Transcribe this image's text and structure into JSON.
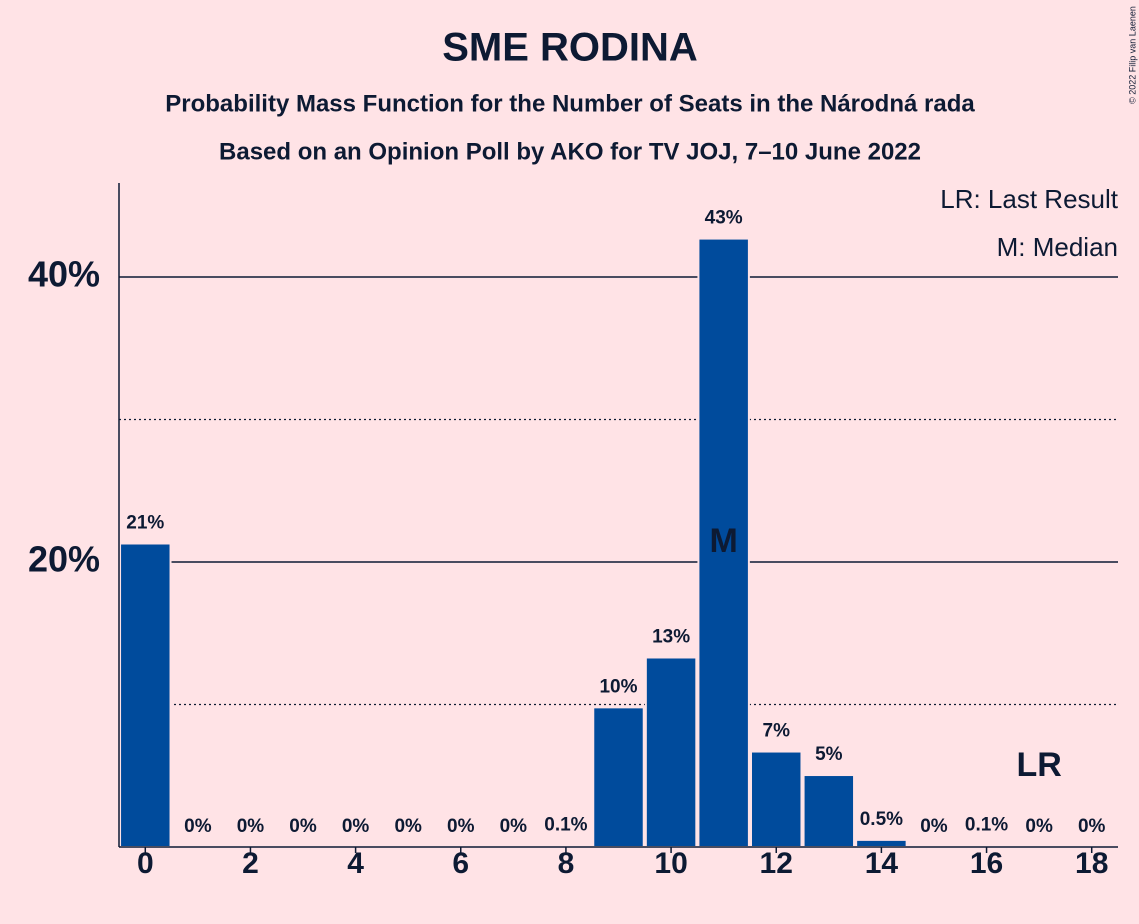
{
  "chart_data": {
    "type": "bar",
    "title": "SME RODINA",
    "subtitle": [
      "Probability Mass Function for the Number of Seats in the Národná rada",
      "Based on an Opinion Poll by AKO for TV JOJ, 7–10 June 2022"
    ],
    "legend": [
      "LR: Last Result",
      "M: Median"
    ],
    "copyright": "© 2022 Filip van Laenen",
    "x": [
      0,
      1,
      2,
      3,
      4,
      5,
      6,
      7,
      8,
      9,
      10,
      11,
      12,
      13,
      14,
      15,
      16,
      17,
      18
    ],
    "values": [
      21.3,
      0,
      0,
      0,
      0,
      0,
      0,
      0,
      0.1,
      9.8,
      13.3,
      42.7,
      6.7,
      5.05,
      0.5,
      0,
      0.1,
      0,
      0
    ],
    "value_labels": [
      "21%",
      "0%",
      "0%",
      "0%",
      "0%",
      "0%",
      "0%",
      "0%",
      "0.1%",
      "10%",
      "13%",
      "43%",
      "7%",
      "5%",
      "0.5%",
      "0%",
      "0.1%",
      "0%",
      "0%"
    ],
    "color": "#004b9c",
    "xlim": [
      -0.5,
      18.5
    ],
    "xticks": [
      0,
      2,
      4,
      6,
      8,
      10,
      12,
      14,
      16,
      18
    ],
    "ylim": [
      0,
      46.6
    ],
    "yticks": [
      {
        "value": 20,
        "label": "20%"
      },
      {
        "value": 40,
        "label": "40%"
      }
    ],
    "minor_yticks": [
      10,
      30
    ],
    "grid": true,
    "annotations": [
      {
        "text": "M",
        "x": 11
      },
      {
        "text": "LR",
        "x": 17
      }
    ]
  }
}
